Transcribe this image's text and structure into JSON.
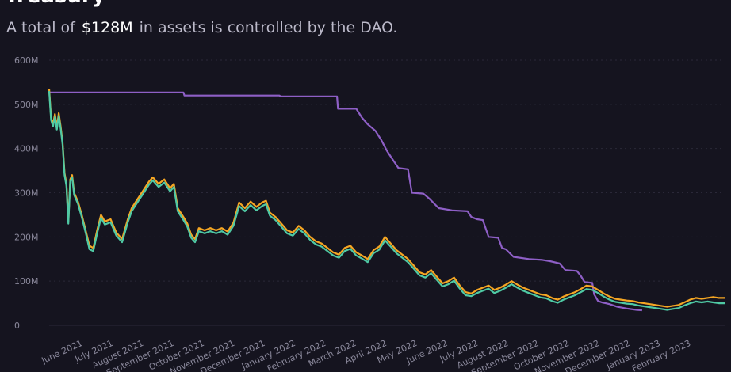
{
  "header": {
    "title": "Treasury",
    "subtitle_prefix": "A total of",
    "subtitle_amount": "$128M",
    "subtitle_suffix": "in assets is controlled by the DAO."
  },
  "colors": {
    "background": "#15141f",
    "purple": "#8e5fc6",
    "orange": "#f5a623",
    "teal": "#4fc9a4",
    "grid": "#2a2838"
  },
  "chart_data": {
    "type": "line",
    "ylim": [
      0,
      600
    ],
    "y_unit": "M",
    "y_ticks": [
      "0",
      "100M",
      "200M",
      "300M",
      "400M",
      "500M",
      "600M"
    ],
    "y_tick_values": [
      0,
      100,
      200,
      300,
      400,
      500,
      600
    ],
    "x_ticks": [
      "June 2021",
      "July 2021",
      "August 2021",
      "September 2021",
      "October 2021",
      "November 2021",
      "December 2021",
      "January 2022",
      "February 2022",
      "March 2022",
      "April 2022",
      "May 2022",
      "June 2022",
      "July 2022",
      "August 2022",
      "September 2022",
      "October 2022",
      "November 2022",
      "December 2022",
      "January 2023",
      "February 2023"
    ],
    "series": [
      {
        "key": "purple",
        "color": "#8e5fc6",
        "points": [
          [
            0.0,
            527
          ],
          [
            7.0,
            527
          ],
          [
            7.05,
            520
          ],
          [
            12.0,
            520
          ],
          [
            12.05,
            518
          ],
          [
            15.0,
            518
          ],
          [
            15.05,
            490
          ],
          [
            16.0,
            490
          ],
          [
            16.3,
            470
          ],
          [
            16.6,
            455
          ],
          [
            17.0,
            440
          ],
          [
            17.3,
            420
          ],
          [
            17.6,
            395
          ],
          [
            17.9,
            375
          ],
          [
            18.2,
            356
          ],
          [
            18.7,
            353
          ],
          [
            18.9,
            300
          ],
          [
            19.5,
            298
          ],
          [
            19.8,
            287
          ],
          [
            20.3,
            265
          ],
          [
            21.0,
            260
          ],
          [
            21.8,
            258
          ],
          [
            22.0,
            245
          ],
          [
            22.3,
            240
          ],
          [
            22.6,
            238
          ],
          [
            22.9,
            200
          ],
          [
            23.4,
            198
          ],
          [
            23.6,
            175
          ],
          [
            23.8,
            172
          ],
          [
            24.2,
            155
          ],
          [
            25.0,
            150
          ],
          [
            25.7,
            148
          ],
          [
            26.1,
            145
          ],
          [
            26.6,
            140
          ],
          [
            26.9,
            125
          ],
          [
            27.5,
            123
          ],
          [
            27.7,
            112
          ],
          [
            27.9,
            98
          ],
          [
            28.3,
            96
          ],
          [
            28.4,
            70
          ],
          [
            28.6,
            55
          ],
          [
            28.8,
            52
          ],
          [
            29.2,
            48
          ],
          [
            29.6,
            42
          ],
          [
            30.1,
            38
          ],
          [
            30.6,
            35
          ],
          [
            30.9,
            34
          ]
        ]
      },
      {
        "key": "orange",
        "color": "#f5a623",
        "points": [
          [
            0.0,
            535
          ],
          [
            0.1,
            470
          ],
          [
            0.2,
            455
          ],
          [
            0.3,
            478
          ],
          [
            0.4,
            448
          ],
          [
            0.5,
            480
          ],
          [
            0.6,
            450
          ],
          [
            0.7,
            415
          ],
          [
            0.8,
            345
          ],
          [
            0.9,
            320
          ],
          [
            1.0,
            235
          ],
          [
            1.1,
            330
          ],
          [
            1.2,
            340
          ],
          [
            1.3,
            300
          ],
          [
            1.5,
            280
          ],
          [
            1.7,
            250
          ],
          [
            1.9,
            215
          ],
          [
            2.1,
            180
          ],
          [
            2.3,
            175
          ],
          [
            2.5,
            215
          ],
          [
            2.7,
            250
          ],
          [
            2.9,
            235
          ],
          [
            3.2,
            240
          ],
          [
            3.5,
            210
          ],
          [
            3.8,
            195
          ],
          [
            4.1,
            240
          ],
          [
            4.3,
            265
          ],
          [
            4.6,
            285
          ],
          [
            4.9,
            305
          ],
          [
            5.2,
            325
          ],
          [
            5.4,
            335
          ],
          [
            5.7,
            320
          ],
          [
            6.0,
            330
          ],
          [
            6.3,
            310
          ],
          [
            6.5,
            320
          ],
          [
            6.7,
            265
          ],
          [
            7.0,
            245
          ],
          [
            7.2,
            230
          ],
          [
            7.4,
            205
          ],
          [
            7.6,
            195
          ],
          [
            7.8,
            220
          ],
          [
            8.1,
            215
          ],
          [
            8.4,
            220
          ],
          [
            8.7,
            215
          ],
          [
            9.0,
            220
          ],
          [
            9.3,
            212
          ],
          [
            9.6,
            232
          ],
          [
            9.9,
            278
          ],
          [
            10.2,
            265
          ],
          [
            10.5,
            280
          ],
          [
            10.8,
            268
          ],
          [
            11.1,
            278
          ],
          [
            11.3,
            282
          ],
          [
            11.5,
            255
          ],
          [
            11.8,
            245
          ],
          [
            12.1,
            230
          ],
          [
            12.4,
            215
          ],
          [
            12.7,
            210
          ],
          [
            13.0,
            225
          ],
          [
            13.3,
            215
          ],
          [
            13.6,
            200
          ],
          [
            13.9,
            190
          ],
          [
            14.2,
            185
          ],
          [
            14.5,
            175
          ],
          [
            14.8,
            165
          ],
          [
            15.1,
            160
          ],
          [
            15.4,
            175
          ],
          [
            15.7,
            180
          ],
          [
            16.0,
            165
          ],
          [
            16.3,
            158
          ],
          [
            16.6,
            150
          ],
          [
            16.9,
            170
          ],
          [
            17.2,
            178
          ],
          [
            17.5,
            200
          ],
          [
            17.8,
            185
          ],
          [
            18.1,
            170
          ],
          [
            18.4,
            160
          ],
          [
            18.7,
            150
          ],
          [
            19.0,
            135
          ],
          [
            19.3,
            120
          ],
          [
            19.6,
            115
          ],
          [
            19.9,
            125
          ],
          [
            20.2,
            110
          ],
          [
            20.5,
            95
          ],
          [
            20.8,
            100
          ],
          [
            21.1,
            108
          ],
          [
            21.4,
            90
          ],
          [
            21.7,
            75
          ],
          [
            22.0,
            72
          ],
          [
            22.3,
            80
          ],
          [
            22.6,
            85
          ],
          [
            22.9,
            90
          ],
          [
            23.2,
            80
          ],
          [
            23.5,
            85
          ],
          [
            23.8,
            92
          ],
          [
            24.1,
            100
          ],
          [
            24.4,
            92
          ],
          [
            24.7,
            85
          ],
          [
            25.0,
            80
          ],
          [
            25.3,
            75
          ],
          [
            25.6,
            70
          ],
          [
            25.9,
            68
          ],
          [
            26.2,
            62
          ],
          [
            26.5,
            58
          ],
          [
            26.8,
            65
          ],
          [
            27.1,
            70
          ],
          [
            27.4,
            75
          ],
          [
            27.7,
            82
          ],
          [
            28.0,
            90
          ],
          [
            28.3,
            88
          ],
          [
            28.6,
            80
          ],
          [
            28.9,
            72
          ],
          [
            29.2,
            65
          ],
          [
            29.5,
            60
          ],
          [
            29.8,
            58
          ],
          [
            30.1,
            56
          ],
          [
            30.4,
            55
          ],
          [
            30.7,
            52
          ],
          [
            31.0,
            50
          ],
          [
            31.3,
            48
          ],
          [
            31.6,
            46
          ],
          [
            31.9,
            44
          ],
          [
            32.2,
            42
          ],
          [
            32.5,
            44
          ],
          [
            32.8,
            46
          ],
          [
            33.1,
            52
          ],
          [
            33.4,
            58
          ],
          [
            33.7,
            62
          ],
          [
            34.0,
            60
          ],
          [
            34.3,
            62
          ],
          [
            34.6,
            64
          ],
          [
            34.9,
            62
          ],
          [
            35.2,
            62
          ]
        ]
      },
      {
        "key": "teal",
        "color": "#4fc9a4",
        "points": [
          [
            0.0,
            530
          ],
          [
            0.1,
            465
          ],
          [
            0.2,
            450
          ],
          [
            0.3,
            472
          ],
          [
            0.4,
            443
          ],
          [
            0.5,
            474
          ],
          [
            0.6,
            445
          ],
          [
            0.7,
            410
          ],
          [
            0.8,
            340
          ],
          [
            0.9,
            315
          ],
          [
            1.0,
            230
          ],
          [
            1.1,
            325
          ],
          [
            1.2,
            335
          ],
          [
            1.3,
            295
          ],
          [
            1.5,
            275
          ],
          [
            1.7,
            245
          ],
          [
            1.9,
            210
          ],
          [
            2.1,
            172
          ],
          [
            2.3,
            168
          ],
          [
            2.5,
            208
          ],
          [
            2.7,
            243
          ],
          [
            2.9,
            228
          ],
          [
            3.2,
            233
          ],
          [
            3.5,
            203
          ],
          [
            3.8,
            188
          ],
          [
            4.1,
            233
          ],
          [
            4.3,
            258
          ],
          [
            4.6,
            278
          ],
          [
            4.9,
            298
          ],
          [
            5.2,
            318
          ],
          [
            5.4,
            328
          ],
          [
            5.7,
            313
          ],
          [
            6.0,
            323
          ],
          [
            6.3,
            303
          ],
          [
            6.5,
            313
          ],
          [
            6.7,
            258
          ],
          [
            7.0,
            238
          ],
          [
            7.2,
            223
          ],
          [
            7.4,
            198
          ],
          [
            7.6,
            188
          ],
          [
            7.8,
            213
          ],
          [
            8.1,
            208
          ],
          [
            8.4,
            213
          ],
          [
            8.7,
            208
          ],
          [
            9.0,
            213
          ],
          [
            9.3,
            205
          ],
          [
            9.6,
            225
          ],
          [
            9.9,
            270
          ],
          [
            10.2,
            258
          ],
          [
            10.5,
            272
          ],
          [
            10.8,
            260
          ],
          [
            11.1,
            270
          ],
          [
            11.3,
            274
          ],
          [
            11.5,
            248
          ],
          [
            11.8,
            238
          ],
          [
            12.1,
            223
          ],
          [
            12.4,
            208
          ],
          [
            12.7,
            203
          ],
          [
            13.0,
            218
          ],
          [
            13.3,
            208
          ],
          [
            13.6,
            193
          ],
          [
            13.9,
            183
          ],
          [
            14.2,
            178
          ],
          [
            14.5,
            168
          ],
          [
            14.8,
            158
          ],
          [
            15.1,
            153
          ],
          [
            15.4,
            168
          ],
          [
            15.7,
            173
          ],
          [
            16.0,
            158
          ],
          [
            16.3,
            151
          ],
          [
            16.6,
            143
          ],
          [
            16.9,
            163
          ],
          [
            17.2,
            171
          ],
          [
            17.5,
            192
          ],
          [
            17.8,
            178
          ],
          [
            18.1,
            163
          ],
          [
            18.4,
            153
          ],
          [
            18.7,
            143
          ],
          [
            19.0,
            128
          ],
          [
            19.3,
            113
          ],
          [
            19.6,
            108
          ],
          [
            19.9,
            118
          ],
          [
            20.2,
            103
          ],
          [
            20.5,
            88
          ],
          [
            20.8,
            93
          ],
          [
            21.1,
            101
          ],
          [
            21.4,
            83
          ],
          [
            21.7,
            68
          ],
          [
            22.0,
            66
          ],
          [
            22.3,
            73
          ],
          [
            22.6,
            78
          ],
          [
            22.9,
            83
          ],
          [
            23.2,
            73
          ],
          [
            23.5,
            78
          ],
          [
            23.8,
            85
          ],
          [
            24.1,
            93
          ],
          [
            24.4,
            85
          ],
          [
            24.7,
            78
          ],
          [
            25.0,
            73
          ],
          [
            25.3,
            68
          ],
          [
            25.6,
            63
          ],
          [
            25.9,
            61
          ],
          [
            26.2,
            55
          ],
          [
            26.5,
            51
          ],
          [
            26.8,
            58
          ],
          [
            27.1,
            63
          ],
          [
            27.4,
            68
          ],
          [
            27.7,
            75
          ],
          [
            28.0,
            82
          ],
          [
            28.3,
            80
          ],
          [
            28.6,
            73
          ],
          [
            28.9,
            65
          ],
          [
            29.2,
            58
          ],
          [
            29.5,
            53
          ],
          [
            29.8,
            51
          ],
          [
            30.1,
            49
          ],
          [
            30.4,
            48
          ],
          [
            30.7,
            45
          ],
          [
            31.0,
            43
          ],
          [
            31.3,
            41
          ],
          [
            31.6,
            39
          ],
          [
            31.9,
            37
          ],
          [
            32.2,
            35
          ],
          [
            32.5,
            37
          ],
          [
            32.8,
            39
          ],
          [
            33.1,
            45
          ],
          [
            33.4,
            50
          ],
          [
            33.7,
            54
          ],
          [
            34.0,
            52
          ],
          [
            34.3,
            54
          ],
          [
            34.6,
            52
          ],
          [
            34.9,
            50
          ],
          [
            35.2,
            50
          ]
        ]
      }
    ]
  }
}
